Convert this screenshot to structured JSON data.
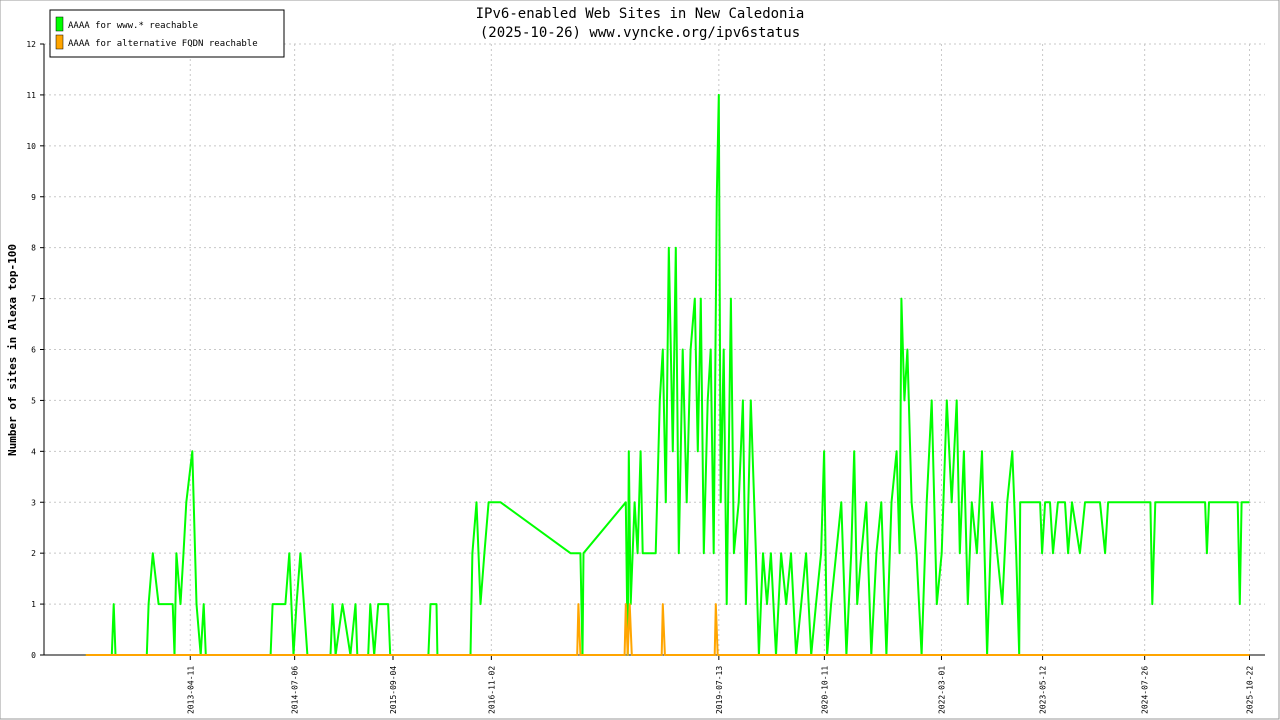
{
  "chart_data": {
    "type": "line",
    "title": "IPv6-enabled Web Sites in New Caledonia",
    "subtitle": "(2025-10-26) www.vyncke.org/ipv6status",
    "y_label": "Number of sites in Alexa top-100",
    "xlim": [
      "2011-07-19",
      "2025-12-28"
    ],
    "xticks": [
      "2013-04-11",
      "2014-07-06",
      "2015-09-04",
      "2016-11-02",
      "2019-07-13",
      "2020-10-11",
      "2022-03-01",
      "2023-05-12",
      "2024-07-26",
      "2025-10-22"
    ],
    "ylim": [
      0,
      12
    ],
    "yticks": [
      0,
      1,
      2,
      3,
      4,
      5,
      6,
      7,
      8,
      9,
      10,
      11,
      12
    ],
    "grid": true,
    "legend": "upper-left",
    "series": [
      {
        "name": "AAAA for www.* reachable",
        "color": "#00ff00",
        "x": [
          "2012-01-15",
          "2012-05-07",
          "2012-05-15",
          "2012-05-23",
          "2012-10-05",
          "2012-10-13",
          "2012-10-31",
          "2012-11-25",
          "2013-01-25",
          "2013-02-02",
          "2013-02-10",
          "2013-02-28",
          "2013-03-13",
          "2013-03-25",
          "2013-04-20",
          "2013-05-08",
          "2013-05-26",
          "2013-06-08",
          "2013-06-17",
          "2014-03-24",
          "2014-04-02",
          "2014-05-27",
          "2014-06-13",
          "2014-07-01",
          "2014-07-14",
          "2014-07-31",
          "2014-08-30",
          "2014-12-08",
          "2014-12-17",
          "2014-12-30",
          "2015-01-29",
          "2015-03-04",
          "2015-03-26",
          "2015-04-03",
          "2015-05-20",
          "2015-05-29",
          "2015-06-15",
          "2015-07-02",
          "2015-08-14",
          "2015-08-23",
          "2016-02-04",
          "2016-02-13",
          "2016-03-10",
          "2016-03-14",
          "2016-08-04",
          "2016-08-12",
          "2016-08-30",
          "2016-09-16",
          "2016-10-03",
          "2016-10-21",
          "2016-12-12",
          "2017-10-10",
          "2017-11-22",
          "2017-12-01",
          "2017-12-05",
          "2018-06-06",
          "2018-06-14",
          "2018-06-19",
          "2018-06-27",
          "2018-07-14",
          "2018-07-27",
          "2018-08-09",
          "2018-08-18",
          "2018-10-13",
          "2018-10-31",
          "2018-11-13",
          "2018-11-26",
          "2018-12-09",
          "2018-12-26",
          "2019-01-08",
          "2019-01-21",
          "2019-02-07",
          "2019-02-24",
          "2019-03-13",
          "2019-03-31",
          "2019-04-13",
          "2019-04-26",
          "2019-05-09",
          "2019-05-26",
          "2019-06-08",
          "2019-06-21",
          "2019-07-04",
          "2019-07-13",
          "2019-07-21",
          "2019-08-03",
          "2019-08-16",
          "2019-09-03",
          "2019-09-16",
          "2019-10-07",
          "2019-10-25",
          "2019-11-07",
          "2019-11-28",
          "2019-12-20",
          "2020-01-02",
          "2020-01-20",
          "2020-02-06",
          "2020-02-23",
          "2020-03-16",
          "2020-04-07",
          "2020-04-29",
          "2020-05-20",
          "2020-06-11",
          "2020-07-03",
          "2020-07-24",
          "2020-08-15",
          "2020-09-05",
          "2020-09-27",
          "2020-10-10",
          "2020-10-23",
          "2020-11-09",
          "2020-12-01",
          "2020-12-23",
          "2021-01-14",
          "2021-02-04",
          "2021-02-17",
          "2021-03-02",
          "2021-03-20",
          "2021-04-10",
          "2021-05-02",
          "2021-05-24",
          "2021-06-14",
          "2021-07-06",
          "2021-07-28",
          "2021-08-19",
          "2021-09-01",
          "2021-09-09",
          "2021-09-22",
          "2021-10-05",
          "2021-10-23",
          "2021-11-13",
          "2021-12-05",
          "2021-12-27",
          "2022-01-18",
          "2022-02-09",
          "2022-03-02",
          "2022-03-24",
          "2022-04-14",
          "2022-05-06",
          "2022-05-19",
          "2022-06-06",
          "2022-06-23",
          "2022-07-10",
          "2022-08-01",
          "2022-08-23",
          "2022-09-14",
          "2022-10-06",
          "2022-10-28",
          "2022-11-19",
          "2022-12-10",
          "2023-01-01",
          "2023-01-18",
          "2023-01-31",
          "2023-02-04",
          "2023-02-25",
          "2023-05-01",
          "2023-05-10",
          "2023-05-23",
          "2023-06-13",
          "2023-06-26",
          "2023-07-17",
          "2023-08-17",
          "2023-08-30",
          "2023-09-16",
          "2023-10-20",
          "2023-11-11",
          "2024-01-15",
          "2024-02-06",
          "2024-02-19",
          "2024-08-20",
          "2024-08-28",
          "2024-09-10",
          "2025-04-13",
          "2025-04-21",
          "2025-04-30",
          "2025-09-01",
          "2025-09-10",
          "2025-09-18",
          "2025-10-22"
        ],
        "values": [
          0,
          0,
          1,
          0,
          0,
          1,
          2,
          1,
          1,
          0,
          2,
          1,
          2,
          3,
          4,
          1,
          0,
          1,
          0,
          0,
          1,
          1,
          2,
          0,
          1,
          2,
          0,
          0,
          1,
          0,
          1,
          0,
          1,
          0,
          0,
          1,
          0,
          1,
          1,
          0,
          0,
          1,
          1,
          0,
          0,
          2,
          3,
          1,
          2,
          3,
          3,
          2,
          2,
          0,
          2,
          3,
          0,
          4,
          1,
          3,
          2,
          4,
          2,
          2,
          5,
          6,
          3,
          8,
          4,
          8,
          2,
          6,
          3,
          6,
          7,
          4,
          7,
          2,
          5,
          6,
          2,
          9,
          11,
          3,
          6,
          1,
          7,
          2,
          3,
          5,
          1,
          5,
          2,
          0,
          2,
          1,
          2,
          0,
          2,
          1,
          2,
          0,
          1,
          2,
          0,
          1,
          2,
          4,
          0,
          1,
          2,
          3,
          0,
          2,
          4,
          1,
          2,
          3,
          0,
          2,
          3,
          0,
          3,
          4,
          2,
          7,
          5,
          6,
          3,
          2,
          0,
          3,
          5,
          1,
          2,
          5,
          3,
          5,
          2,
          4,
          1,
          3,
          2,
          4,
          0,
          3,
          2,
          1,
          3,
          4,
          2,
          0,
          3,
          3,
          3,
          2,
          3,
          3,
          2,
          3,
          3,
          2,
          3,
          2,
          3,
          3,
          2,
          3,
          3,
          1,
          3,
          3,
          2,
          3,
          3,
          1,
          3,
          3
        ]
      },
      {
        "name": "AAAA for alternative FQDN reachable",
        "color": "#ffa500",
        "x": [
          "2012-01-15",
          "2017-11-08",
          "2017-11-13",
          "2017-11-22",
          "2018-06-01",
          "2018-06-06",
          "2018-06-14",
          "2018-06-23",
          "2018-07-02",
          "2018-11-08",
          "2018-11-13",
          "2018-11-22",
          "2019-06-25",
          "2019-06-30",
          "2019-07-08",
          "2025-10-22"
        ],
        "values": [
          0,
          0,
          1,
          0,
          0,
          1,
          0,
          1,
          0,
          0,
          1,
          0,
          0,
          1,
          0,
          0
        ]
      }
    ]
  }
}
